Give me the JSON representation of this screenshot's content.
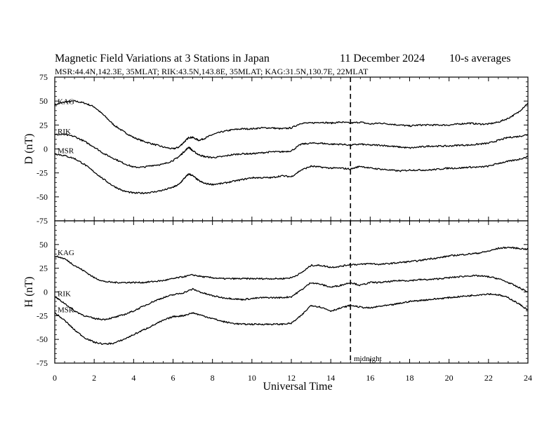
{
  "chart_data": {
    "type": "line",
    "title": "Magnetic Field Variations at 3 Stations in Japan",
    "date": "11 December 2024",
    "averaging": "10-s averages",
    "stations_line": "MSR:44.4N,142.3E, 35MLAT;  RIK:43.5N,143.8E, 35MLAT;  KAG:31.5N,130.7E, 22MLAT",
    "xlabel": "Universal Time",
    "xlim": [
      0,
      24
    ],
    "xticks": [
      "0",
      "2",
      "4",
      "6",
      "8",
      "10",
      "12",
      "14",
      "16",
      "18",
      "20",
      "22",
      "24"
    ],
    "yticks": [
      "75",
      "50",
      "25",
      "0",
      "-25",
      "-50",
      "-75"
    ],
    "grid": false,
    "annotation": {
      "label": "midnight",
      "x": 15,
      "style": "dashed"
    },
    "panels": [
      {
        "ylabel": "D (nT)",
        "ylim": [
          -75,
          75
        ],
        "series": [
          {
            "name": "KAG",
            "x": [
              0,
              0.5,
              1,
              1.5,
              2,
              2.5,
              3,
              3.5,
              4,
              4.5,
              5,
              5.5,
              6,
              6.3,
              6.6,
              6.8,
              7,
              7.3,
              7.6,
              8,
              8.5,
              9,
              9.5,
              10,
              10.5,
              11,
              11.5,
              12,
              12.5,
              13,
              13.5,
              14,
              14.5,
              15,
              15.5,
              16,
              16.5,
              17,
              17.5,
              18,
              18.5,
              19,
              19.5,
              20,
              20.5,
              21,
              21.5,
              22,
              22.5,
              23,
              23.5,
              24
            ],
            "y": [
              46,
              49,
              50,
              48,
              44,
              35,
              25,
              18,
              12,
              8,
              5,
              2,
              0,
              2,
              8,
              12,
              12,
              9,
              11,
              15,
              18,
              20,
              21,
              21,
              22,
              22,
              21,
              22,
              27,
              27,
              28,
              27,
              28,
              27,
              28,
              26,
              27,
              26,
              25,
              24,
              25,
              25,
              25,
              25,
              26,
              27,
              26,
              26,
              28,
              32,
              38,
              48
            ]
          },
          {
            "name": "RIK",
            "x": [
              0,
              0.5,
              1,
              1.5,
              2,
              2.5,
              3,
              3.5,
              4,
              4.5,
              5,
              5.5,
              6,
              6.3,
              6.6,
              6.8,
              7,
              7.3,
              7.6,
              8,
              8.5,
              9,
              9.5,
              10,
              10.5,
              11,
              11.5,
              12,
              12.5,
              13,
              13.5,
              14,
              14.5,
              15,
              15.5,
              16,
              16.5,
              17,
              17.5,
              18,
              18.5,
              19,
              19.5,
              20,
              20.5,
              21,
              21.5,
              22,
              22.5,
              23,
              23.5,
              24
            ],
            "y": [
              15,
              15,
              13,
              8,
              2,
              -5,
              -10,
              -15,
              -19,
              -19,
              -17,
              -16,
              -12,
              -8,
              -2,
              2,
              -2,
              -6,
              -8,
              -9,
              -8,
              -6,
              -5,
              -5,
              -4,
              -3,
              -3,
              -2,
              5,
              6,
              6,
              5,
              5,
              4,
              5,
              4,
              4,
              3,
              2,
              1,
              2,
              3,
              3,
              3,
              4,
              4,
              5,
              6,
              9,
              12,
              13,
              15
            ]
          },
          {
            "name": "MSR",
            "x": [
              0,
              0.5,
              1,
              1.5,
              2,
              2.5,
              3,
              3.5,
              4,
              4.5,
              5,
              5.5,
              6,
              6.3,
              6.6,
              6.8,
              7,
              7.3,
              7.6,
              8,
              8.5,
              9,
              9.5,
              10,
              10.5,
              11,
              11.5,
              12,
              12.5,
              13,
              13.5,
              14,
              14.5,
              15,
              15.5,
              16,
              16.5,
              17,
              17.5,
              18,
              18.5,
              19,
              19.5,
              20,
              20.5,
              21,
              21.5,
              22,
              22.5,
              23,
              23.5,
              24
            ],
            "y": [
              -5,
              -7,
              -10,
              -16,
              -24,
              -32,
              -39,
              -44,
              -46,
              -46,
              -45,
              -43,
              -40,
              -37,
              -30,
              -26,
              -28,
              -33,
              -36,
              -37,
              -36,
              -34,
              -32,
              -30,
              -30,
              -30,
              -28,
              -29,
              -22,
              -18,
              -19,
              -20,
              -20,
              -21,
              -18,
              -20,
              -21,
              -22,
              -23,
              -22,
              -22,
              -22,
              -21,
              -20,
              -20,
              -19,
              -19,
              -18,
              -15,
              -13,
              -11,
              -8
            ]
          }
        ]
      },
      {
        "ylabel": "H (nT)",
        "ylim": [
          -75,
          75
        ],
        "series": [
          {
            "name": "KAG",
            "x": [
              0,
              0.5,
              1,
              1.5,
              2,
              2.5,
              3,
              3.5,
              4,
              4.5,
              5,
              5.5,
              6,
              6.5,
              7,
              7.5,
              8,
              8.5,
              9,
              9.5,
              10,
              10.5,
              11,
              11.5,
              12,
              12.5,
              13,
              13.5,
              14,
              14.5,
              15,
              15.5,
              16,
              16.5,
              17,
              17.5,
              18,
              18.5,
              19,
              19.5,
              20,
              20.5,
              21,
              21.5,
              22,
              22.5,
              23,
              23.5,
              24
            ],
            "y": [
              38,
              35,
              28,
              22,
              15,
              11,
              10,
              10,
              10,
              10,
              11,
              12,
              14,
              16,
              18,
              16,
              15,
              14,
              14,
              14,
              14,
              14,
              14,
              14,
              15,
              20,
              28,
              28,
              26,
              27,
              29,
              29,
              30,
              29,
              30,
              31,
              32,
              33,
              35,
              36,
              38,
              39,
              40,
              41,
              43,
              46,
              47,
              46,
              45
            ]
          },
          {
            "name": "RIK",
            "x": [
              0,
              0.5,
              1,
              1.5,
              2,
              2.5,
              3,
              3.5,
              4,
              4.5,
              5,
              5.5,
              6,
              6.5,
              7,
              7.5,
              8,
              8.5,
              9,
              9.5,
              10,
              10.5,
              11,
              11.5,
              12,
              12.5,
              13,
              13.5,
              14,
              14.5,
              15,
              15.5,
              16,
              16.5,
              17,
              17.5,
              18,
              18.5,
              19,
              19.5,
              20,
              20.5,
              21,
              21.5,
              22,
              22.5,
              23,
              23.5,
              24
            ],
            "y": [
              -5,
              -12,
              -20,
              -25,
              -28,
              -29,
              -27,
              -24,
              -20,
              -15,
              -10,
              -6,
              -3,
              -1,
              3,
              -1,
              -4,
              -6,
              -7,
              -8,
              -7,
              -6,
              -6,
              -6,
              -5,
              2,
              10,
              8,
              5,
              7,
              10,
              7,
              10,
              10,
              11,
              12,
              12,
              13,
              13,
              14,
              15,
              16,
              17,
              17,
              16,
              14,
              10,
              5,
              0
            ]
          },
          {
            "name": "MSR",
            "x": [
              0,
              0.5,
              1,
              1.5,
              2,
              2.5,
              3,
              3.5,
              4,
              4.5,
              5,
              5.5,
              6,
              6.5,
              7,
              7.5,
              8,
              8.5,
              9,
              9.5,
              10,
              10.5,
              11,
              11.5,
              12,
              12.5,
              13,
              13.5,
              14,
              14.5,
              15,
              15.5,
              16,
              16.5,
              17,
              17.5,
              18,
              18.5,
              19,
              19.5,
              20,
              20.5,
              21,
              21.5,
              22,
              22.5,
              23,
              23.5,
              24
            ],
            "y": [
              -22,
              -30,
              -40,
              -48,
              -53,
              -55,
              -54,
              -50,
              -45,
              -40,
              -35,
              -30,
              -26,
              -25,
              -22,
              -25,
              -28,
              -31,
              -33,
              -34,
              -34,
              -34,
              -34,
              -34,
              -33,
              -25,
              -14,
              -16,
              -20,
              -17,
              -14,
              -16,
              -17,
              -15,
              -14,
              -12,
              -10,
              -9,
              -8,
              -7,
              -6,
              -5,
              -4,
              -3,
              -2,
              -3,
              -6,
              -12,
              -19
            ]
          }
        ]
      }
    ]
  }
}
